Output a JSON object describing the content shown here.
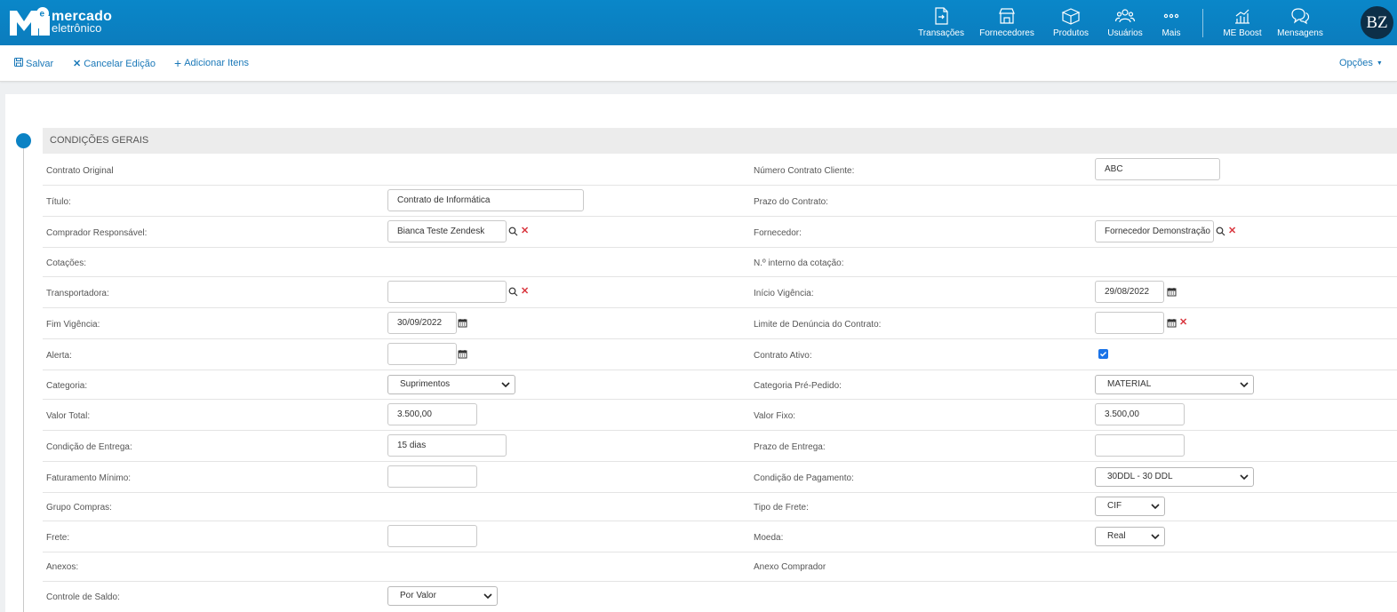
{
  "app": {
    "logo_line1": "mercado",
    "logo_line2": "eletrônico",
    "avatar_initials": "BZ",
    "brand_color": "#0b82c4"
  },
  "nav": {
    "items": [
      {
        "label": "Transações",
        "icon": "transactions-icon"
      },
      {
        "label": "Fornecedores",
        "icon": "suppliers-icon"
      },
      {
        "label": "Produtos",
        "icon": "products-icon"
      },
      {
        "label": "Usuários",
        "icon": "users-icon"
      },
      {
        "label": "Mais",
        "icon": "more-icon"
      },
      {
        "label": "ME Boost",
        "icon": "chart-icon"
      },
      {
        "label": "Mensagens",
        "icon": "messages-icon"
      }
    ]
  },
  "toolbar": {
    "save": "Salvar",
    "cancel": "Cancelar Edição",
    "add_items": "Adicionar Itens",
    "options": "Opções"
  },
  "section": {
    "title": "CONDIÇÕES GERAIS"
  },
  "form": {
    "contrato_original": {
      "label": "Contrato Original"
    },
    "numero_contrato_cliente": {
      "label": "Número Contrato Cliente:",
      "value": "ABC"
    },
    "titulo": {
      "label": "Título:",
      "value": "Contrato de Informática"
    },
    "prazo_contrato": {
      "label": "Prazo do Contrato:"
    },
    "comprador": {
      "label": "Comprador Responsável:",
      "value": "Bianca Teste Zendesk"
    },
    "fornecedor": {
      "label": "Fornecedor:",
      "value": "Fornecedor Demonstração"
    },
    "cotacoes": {
      "label": "Cotações:"
    },
    "numero_interno_cotacao": {
      "label": "N.º interno da cotação:"
    },
    "transportadora": {
      "label": "Transportadora:",
      "value": ""
    },
    "inicio_vigencia": {
      "label": "Início Vigência:",
      "value": "29/08/2022"
    },
    "fim_vigencia": {
      "label": "Fim Vigência:",
      "value": "30/09/2022"
    },
    "limite_denuncia": {
      "label": "Limite de Denúncia do Contrato:",
      "value": ""
    },
    "alerta": {
      "label": "Alerta:",
      "value": ""
    },
    "contrato_ativo": {
      "label": "Contrato Ativo:",
      "checked": true
    },
    "categoria": {
      "label": "Categoria:",
      "value": "Suprimentos"
    },
    "categoria_pre_pedido": {
      "label": "Categoria Pré-Pedido:",
      "value": "MATERIAL"
    },
    "valor_total": {
      "label": "Valor Total:",
      "value": "3.500,00"
    },
    "valor_fixo": {
      "label": "Valor Fixo:",
      "value": "3.500,00"
    },
    "condicao_entrega": {
      "label": "Condição de Entrega:",
      "value": "15 dias"
    },
    "prazo_entrega": {
      "label": "Prazo de Entrega:",
      "value": ""
    },
    "faturamento_minimo": {
      "label": "Faturamento Mínimo:",
      "value": ""
    },
    "condicao_pagamento": {
      "label": "Condição de Pagamento:",
      "value": "30DDL - 30 DDL"
    },
    "grupo_compras": {
      "label": "Grupo Compras:"
    },
    "tipo_frete": {
      "label": "Tipo de Frete:",
      "value": "CIF"
    },
    "frete": {
      "label": "Frete:",
      "value": ""
    },
    "moeda": {
      "label": "Moeda:",
      "value": "Real"
    },
    "anexos": {
      "label": "Anexos:"
    },
    "anexo_comprador": {
      "label": "Anexo Comprador"
    },
    "controle_saldo": {
      "label": "Controle de Saldo:",
      "value": "Por Valor"
    }
  }
}
